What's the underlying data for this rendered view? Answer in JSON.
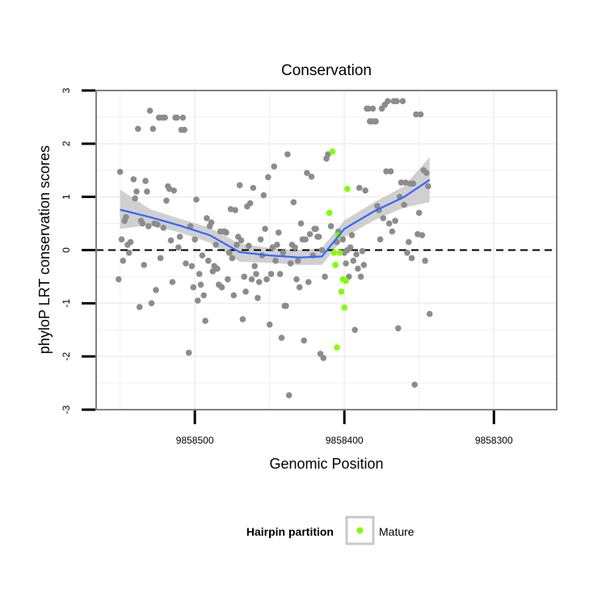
{
  "chart_data": {
    "type": "scatter",
    "title": "Conservation",
    "xlabel": "Genomic Position",
    "ylabel": "phyloP LRT conservation scores",
    "x_reversed": true,
    "xlim": [
      9858566,
      9858258
    ],
    "ylim": [
      -3,
      3
    ],
    "x_ticks": [
      9858500,
      9858400,
      9858300
    ],
    "x_tick_labels": [
      "9858500",
      "9858400",
      "9858300"
    ],
    "y_ticks": [
      -3,
      -2,
      -1,
      0,
      1,
      2,
      3
    ],
    "y_tick_labels": [
      "-3",
      "-2",
      "-1",
      "0",
      "1",
      "2",
      "3"
    ],
    "grid": true,
    "reference_line": {
      "y": 0,
      "style": "dashed"
    },
    "legend": {
      "title": "Hairpin partition",
      "position": "bottom",
      "entries": [
        {
          "label": "Mature",
          "color": "#7fff00"
        }
      ]
    },
    "colors": {
      "background_points": "#8c8c8c",
      "mature_points": "#7fff00",
      "smooth_line": "#3366ff",
      "confidence_band": "#c8c8c8",
      "panel_border": "#808080",
      "grid": "#f0f0f0"
    },
    "series": [
      {
        "role": "background",
        "points": [
          [
            9858550,
            1.47
          ],
          [
            9858551,
            -0.55
          ],
          [
            9858549,
            0.2
          ],
          [
            9858547,
            0.55
          ],
          [
            9858546,
            0.62
          ],
          [
            9858548,
            -0.2
          ],
          [
            9858545,
            0.1
          ],
          [
            9858544,
            -0.05
          ],
          [
            9858543,
            0.15
          ],
          [
            9858541,
            1.33
          ],
          [
            9858540,
            0.97
          ],
          [
            9858539,
            1.1
          ],
          [
            9858538,
            2.28
          ],
          [
            9858537,
            -1.07
          ],
          [
            9858536,
            0.55
          ],
          [
            9858535,
            0.5
          ],
          [
            9858534,
            -0.28
          ],
          [
            9858533,
            1.3
          ],
          [
            9858532,
            1.1
          ],
          [
            9858531,
            0.45
          ],
          [
            9858530,
            2.62
          ],
          [
            9858529,
            -1.0
          ],
          [
            9858528,
            2.28
          ],
          [
            9858527,
            0.5
          ],
          [
            9858526,
            -0.75
          ],
          [
            9858525,
            0.48
          ],
          [
            9858524,
            2.49
          ],
          [
            9858523,
            -0.15
          ],
          [
            9858522,
            2.49
          ],
          [
            9858521,
            0.42
          ],
          [
            9858520,
            2.49
          ],
          [
            9858519,
            0.93
          ],
          [
            9858518,
            1.2
          ],
          [
            9858517,
            1.15
          ],
          [
            9858516,
            0.18
          ],
          [
            9858515,
            -0.6
          ],
          [
            9858514,
            1.12
          ],
          [
            9858513,
            2.49
          ],
          [
            9858512,
            2.49
          ],
          [
            9858511,
            0.05
          ],
          [
            9858510,
            0.25
          ],
          [
            9858509,
            2.26
          ],
          [
            9858508,
            2.49
          ],
          [
            9858507,
            2.26
          ],
          [
            9858506,
            -0.25
          ],
          [
            9858504,
            -1.93
          ],
          [
            9858503,
            0.45
          ],
          [
            9858502,
            -0.3
          ],
          [
            9858501,
            -0.7
          ],
          [
            9858500,
            0.2
          ],
          [
            9858499,
            0.95
          ],
          [
            9858498,
            -0.95
          ],
          [
            9858497,
            -0.45
          ],
          [
            9858496,
            -0.65
          ],
          [
            9858495,
            -0.1
          ],
          [
            9858494,
            -0.85
          ],
          [
            9858493,
            -1.33
          ],
          [
            9858492,
            0.6
          ],
          [
            9858491,
            -0.2
          ],
          [
            9858490,
            0.45
          ],
          [
            9858489,
            0.52
          ],
          [
            9858488,
            -0.4
          ],
          [
            9858487,
            -0.3
          ],
          [
            9858486,
            0.1
          ],
          [
            9858485,
            -0.35
          ],
          [
            9858484,
            -0.65
          ],
          [
            9858483,
            0.35
          ],
          [
            9858482,
            -0.7
          ],
          [
            9858481,
            0.35
          ],
          [
            9858480,
            0.35
          ],
          [
            9858479,
            0.33
          ],
          [
            9858478,
            -0.55
          ],
          [
            9858477,
            -0.05
          ],
          [
            9858476,
            0.77
          ],
          [
            9858475,
            -0.15
          ],
          [
            9858474,
            -0.85
          ],
          [
            9858473,
            0.75
          ],
          [
            9858472,
            0.1
          ],
          [
            9858471,
            0.25
          ],
          [
            9858470,
            1.22
          ],
          [
            9858469,
            0.18
          ],
          [
            9858468,
            -1.3
          ],
          [
            9858467,
            -0.5
          ],
          [
            9858466,
            -0.78
          ],
          [
            9858465,
            0.82
          ],
          [
            9858464,
            0.08
          ],
          [
            9858463,
            0.88
          ],
          [
            9858462,
            -0.55
          ],
          [
            9858461,
            1.17
          ],
          [
            9858460,
            -0.3
          ],
          [
            9858459,
            -0.45
          ],
          [
            9858458,
            -0.9
          ],
          [
            9858457,
            -0.6
          ],
          [
            9858456,
            0.2
          ],
          [
            9858455,
            -0.1
          ],
          [
            9858454,
            1.03
          ],
          [
            9858453,
            0.4
          ],
          [
            9858452,
            -0.55
          ],
          [
            9858451,
            1.37
          ],
          [
            9858450,
            -1.4
          ],
          [
            9858449,
            -0.45
          ],
          [
            9858448,
            0.05
          ],
          [
            9858447,
            1.57
          ],
          [
            9858446,
            -0.2
          ],
          [
            9858445,
            0.1
          ],
          [
            9858444,
            0.33
          ],
          [
            9858443,
            -0.45
          ],
          [
            9858442,
            -1.65
          ],
          [
            9858441,
            -0.05
          ],
          [
            9858440,
            -1.05
          ],
          [
            9858439,
            -1.05
          ],
          [
            9858438,
            1.8
          ],
          [
            9858437,
            -2.73
          ],
          [
            9858436,
            -0.25
          ],
          [
            9858435,
            0.1
          ],
          [
            9858434,
            0.9
          ],
          [
            9858433,
            0.05
          ],
          [
            9858432,
            -0.55
          ],
          [
            9858431,
            -0.2
          ],
          [
            9858430,
            -0.7
          ],
          [
            9858429,
            0.5
          ],
          [
            9858428,
            0.2
          ],
          [
            9858427,
            -1.7
          ],
          [
            9858426,
            0.2
          ],
          [
            9858425,
            1.45
          ],
          [
            9858424,
            -0.6
          ],
          [
            9858423,
            0.3
          ],
          [
            9858422,
            1.38
          ],
          [
            9858421,
            -0.1
          ],
          [
            9858420,
            0.4
          ],
          [
            9858419,
            0.4
          ],
          [
            9858418,
            0.25
          ],
          [
            9858417,
            0.25
          ],
          [
            9858416,
            -1.95
          ],
          [
            9858415,
            0.0
          ],
          [
            9858414,
            -2.03
          ],
          [
            9858413,
            -0.5
          ],
          [
            9858412,
            1.72
          ],
          [
            9858411,
            1.8
          ],
          [
            9858409,
            0.45
          ],
          [
            9858405,
            0.15
          ],
          [
            9858404,
            0.35
          ],
          [
            9858401,
            0.2
          ],
          [
            9858400,
            -0.05
          ],
          [
            9858399,
            -0.25
          ],
          [
            9858398,
            0.0
          ],
          [
            9858397,
            -0.5
          ],
          [
            9858396,
            0.05
          ],
          [
            9858395,
            0.28
          ],
          [
            9858394,
            -0.2
          ],
          [
            9858393,
            -1.5
          ],
          [
            9858392,
            -0.08
          ],
          [
            9858391,
            -0.35
          ],
          [
            9858390,
            1.17
          ],
          [
            9858389,
            -0.5
          ],
          [
            9858388,
            -0.02
          ],
          [
            9858387,
            -0.28
          ],
          [
            9858386,
            1.12
          ],
          [
            9858385,
            2.66
          ],
          [
            9858384,
            2.66
          ],
          [
            9858383,
            2.42
          ],
          [
            9858382,
            2.42
          ],
          [
            9858381,
            2.66
          ],
          [
            9858380,
            2.42
          ],
          [
            9858379,
            2.42
          ],
          [
            9858378,
            0.83
          ],
          [
            9858377,
            0.75
          ],
          [
            9858376,
            0.2
          ],
          [
            9858375,
            2.66
          ],
          [
            9858374,
            0.6
          ],
          [
            9858373,
            2.73
          ],
          [
            9858372,
            1.48
          ],
          [
            9858371,
            2.8
          ],
          [
            9858370,
            0.5
          ],
          [
            9858369,
            1.48
          ],
          [
            9858368,
            0.35
          ],
          [
            9858367,
            2.8
          ],
          [
            9858366,
            0.55
          ],
          [
            9858365,
            2.8
          ],
          [
            9858364,
            -1.47
          ],
          [
            9858363,
            1.0
          ],
          [
            9858362,
            1.27
          ],
          [
            9858361,
            2.8
          ],
          [
            9858360,
            0.85
          ],
          [
            9858359,
            1.27
          ],
          [
            9858358,
            -0.05
          ],
          [
            9858357,
            0.15
          ],
          [
            9858356,
            1.25
          ],
          [
            9858355,
            -0.15
          ],
          [
            9858354,
            1.25
          ],
          [
            9858353,
            -2.53
          ],
          [
            9858352,
            2.55
          ],
          [
            9858351,
            0.3
          ],
          [
            9858350,
            0.7
          ],
          [
            9858349,
            2.55
          ],
          [
            9858348,
            0.28
          ],
          [
            9858347,
            1.5
          ],
          [
            9858346,
            -0.2
          ],
          [
            9858345,
            1.45
          ],
          [
            9858344,
            1.2
          ],
          [
            9858343,
            -1.2
          ]
        ]
      },
      {
        "role": "mature",
        "name": "Mature",
        "points": [
          [
            9858408,
            1.85
          ],
          [
            9858410,
            0.7
          ],
          [
            9858407,
            -0.05
          ],
          [
            9858406,
            -0.28
          ],
          [
            9858403,
            -0.05
          ],
          [
            9858402,
            -0.78
          ],
          [
            9858401,
            -0.55
          ],
          [
            9858399,
            -0.58
          ],
          [
            9858400,
            -1.08
          ],
          [
            9858398,
            1.15
          ],
          [
            9858404,
            0.28
          ],
          [
            9858405,
            -1.83
          ]
        ]
      }
    ],
    "smooth": {
      "x": [
        9858550,
        9858530,
        9858510,
        9858490,
        9858470,
        9858450,
        9858430,
        9858415,
        9858400,
        9858380,
        9858360,
        9858343
      ],
      "y": [
        0.76,
        0.62,
        0.46,
        0.28,
        -0.04,
        -0.1,
        -0.14,
        -0.12,
        0.4,
        0.73,
        1.0,
        1.32
      ],
      "lower": [
        0.4,
        0.47,
        0.33,
        0.14,
        -0.22,
        -0.24,
        -0.28,
        -0.28,
        0.24,
        0.56,
        0.8,
        0.9
      ],
      "upper": [
        1.14,
        0.77,
        0.59,
        0.42,
        0.12,
        0.04,
        0.0,
        0.04,
        0.56,
        0.9,
        1.2,
        1.75
      ]
    }
  }
}
